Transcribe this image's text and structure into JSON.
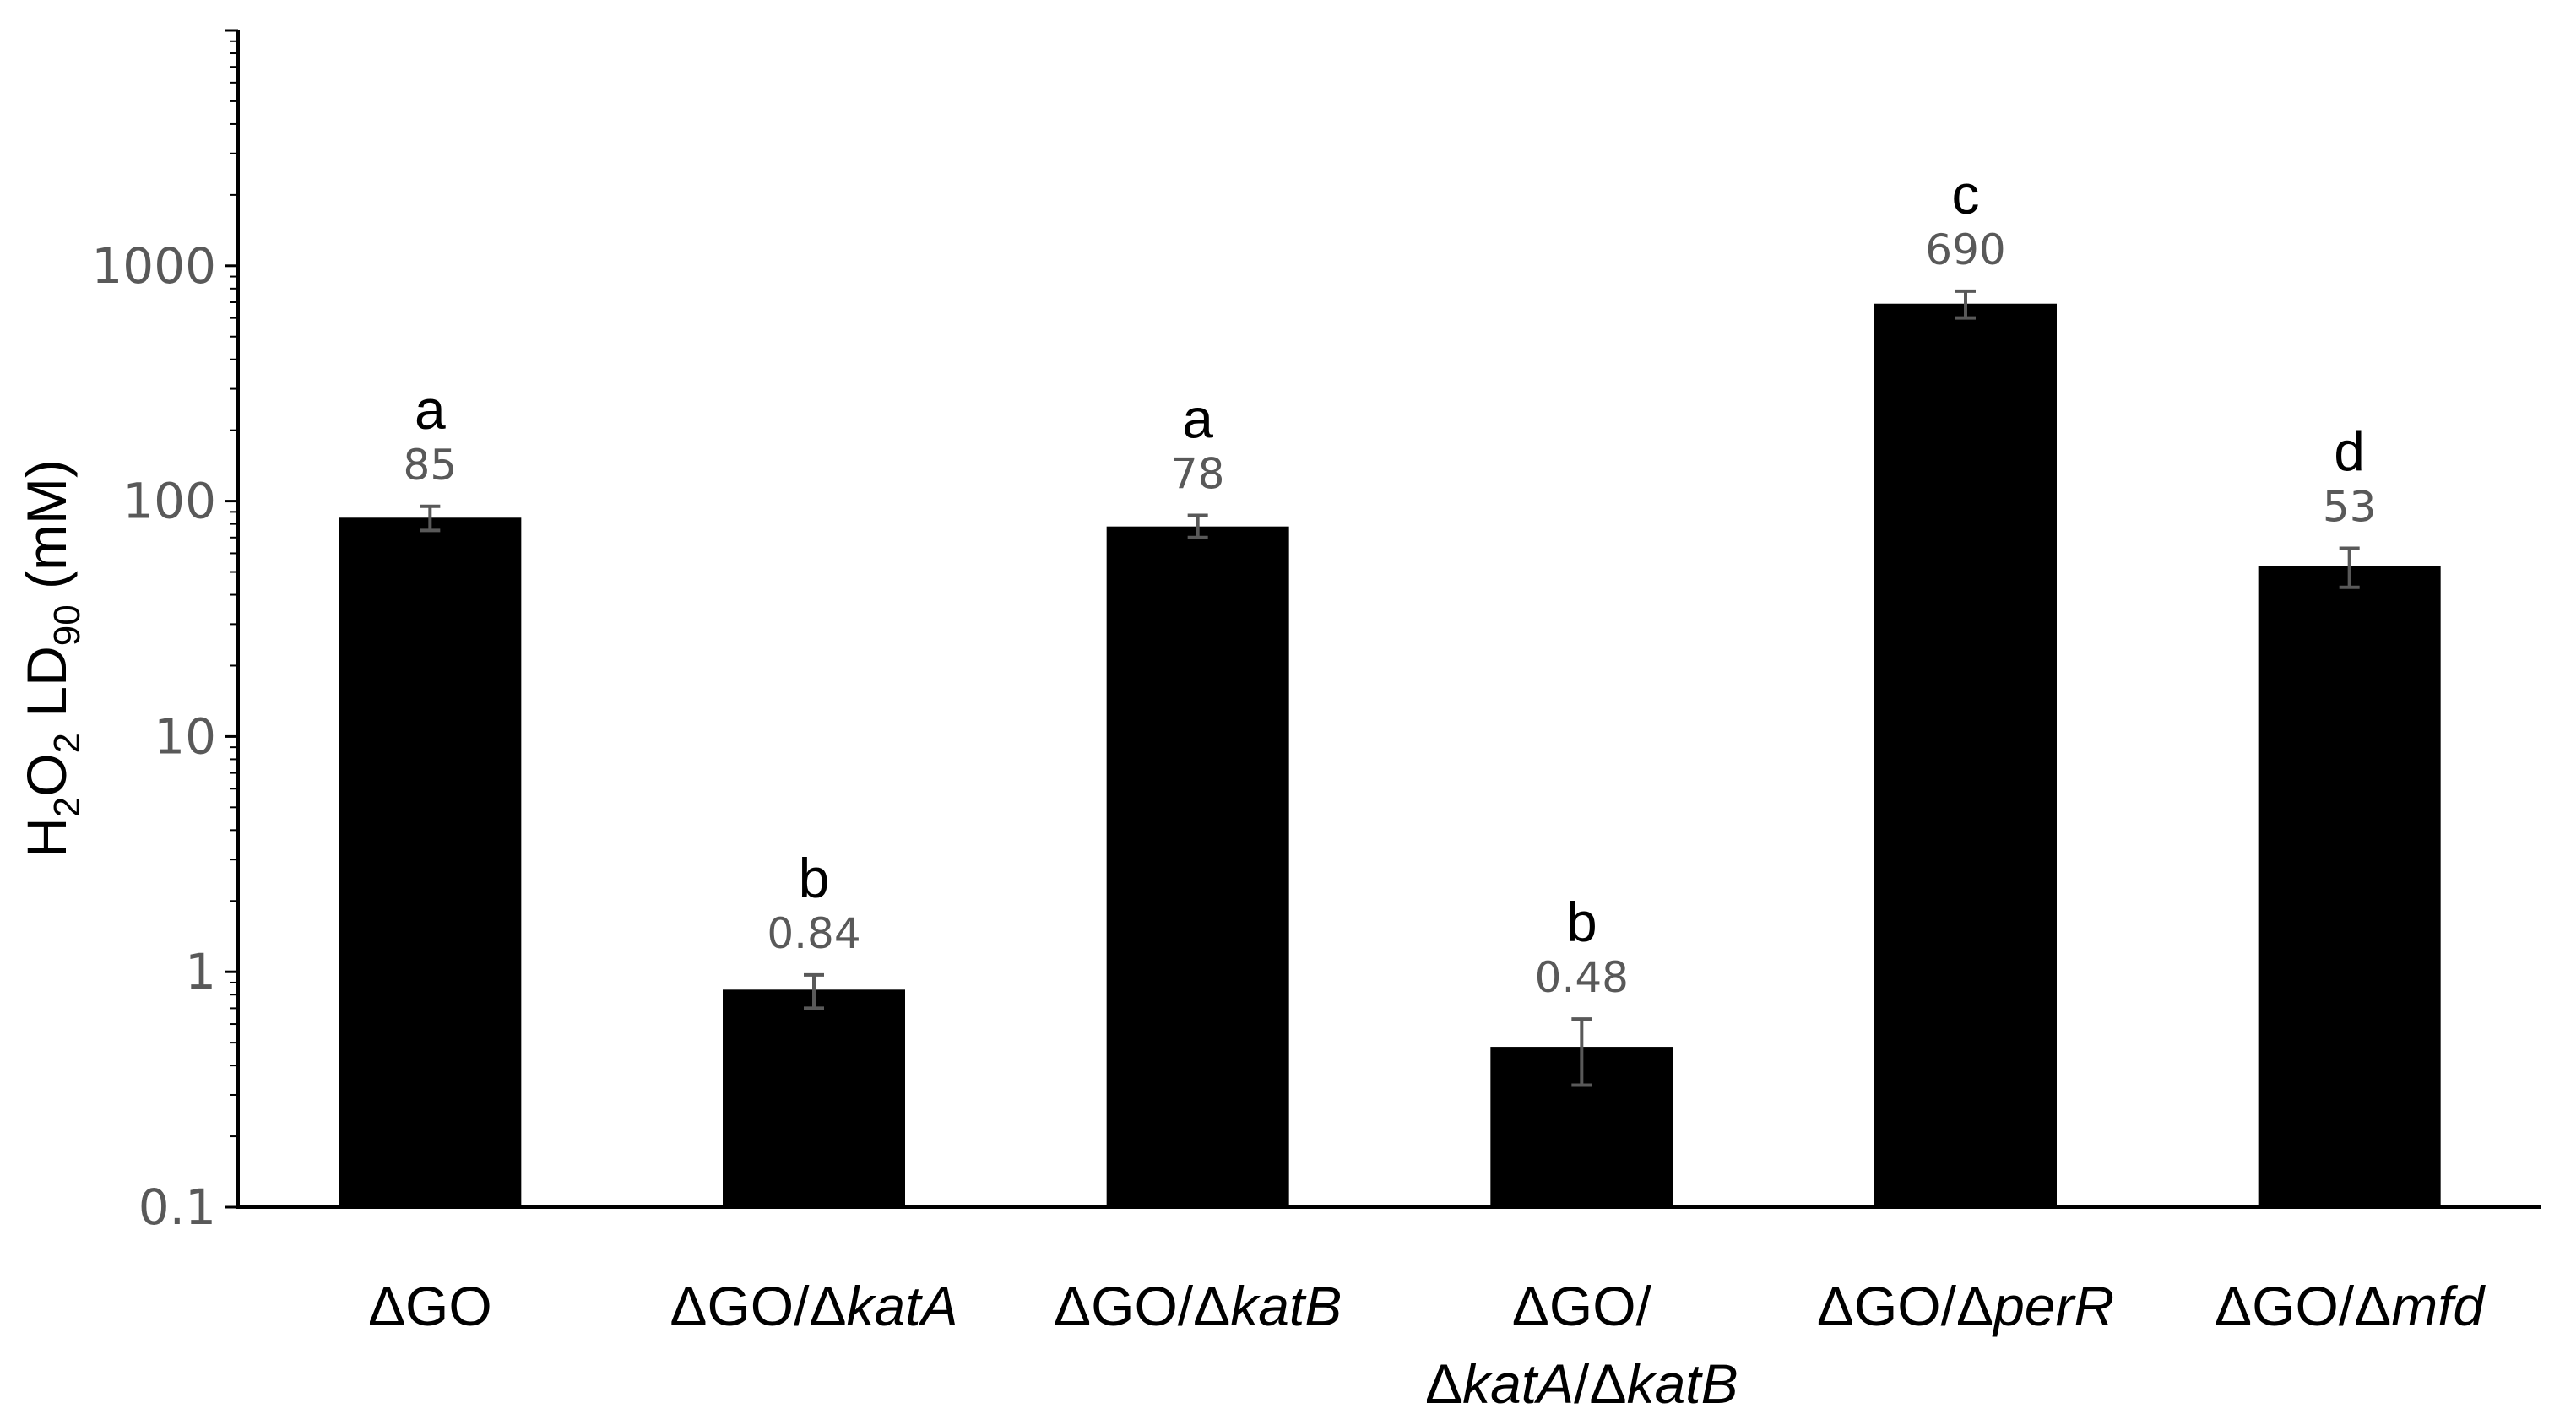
{
  "chart_data": {
    "type": "bar",
    "ylabel": {
      "base": "H",
      "sub1": "2",
      "mid1": "O",
      "sub2": "2",
      "mid2": " LD",
      "sub3": "90",
      "tail": " (mM)"
    },
    "yscale": "log",
    "ylim": [
      0.1,
      10000
    ],
    "yticks": [
      "0.1",
      "1",
      "10",
      "100",
      "1000"
    ],
    "categories": [
      {
        "lines": [
          [
            {
              "t": "ΔGO",
              "i": false
            }
          ]
        ]
      },
      {
        "lines": [
          [
            {
              "t": "ΔGO/Δ",
              "i": false
            },
            {
              "t": "katA",
              "i": true
            }
          ]
        ]
      },
      {
        "lines": [
          [
            {
              "t": "ΔGO/Δ",
              "i": false
            },
            {
              "t": "katB",
              "i": true
            }
          ]
        ]
      },
      {
        "lines": [
          [
            {
              "t": "ΔGO/",
              "i": false
            }
          ],
          [
            {
              "t": "Δ",
              "i": false
            },
            {
              "t": "katA",
              "i": true
            },
            {
              "t": "/Δ",
              "i": false
            },
            {
              "t": "katB",
              "i": true
            }
          ]
        ]
      },
      {
        "lines": [
          [
            {
              "t": "ΔGO/Δ",
              "i": false
            },
            {
              "t": "perR",
              "i": true
            }
          ]
        ]
      },
      {
        "lines": [
          [
            {
              "t": "ΔGO/Δ",
              "i": false
            },
            {
              "t": "mfd",
              "i": true
            }
          ]
        ]
      }
    ],
    "values": [
      85,
      0.84,
      78,
      0.48,
      690,
      53
    ],
    "value_labels": [
      "85",
      "0.84",
      "78",
      "0.48",
      "690",
      "53"
    ],
    "error_low": [
      75,
      0.7,
      70,
      0.33,
      600,
      43
    ],
    "error_high": [
      95,
      0.97,
      87,
      0.63,
      780,
      63
    ],
    "significance": [
      "a",
      "b",
      "a",
      "b",
      "c",
      "d"
    ],
    "grid": false,
    "colors": {
      "bar": "#000000",
      "axis": "#000000",
      "error": "#595959",
      "tick_text": "#595959"
    }
  }
}
